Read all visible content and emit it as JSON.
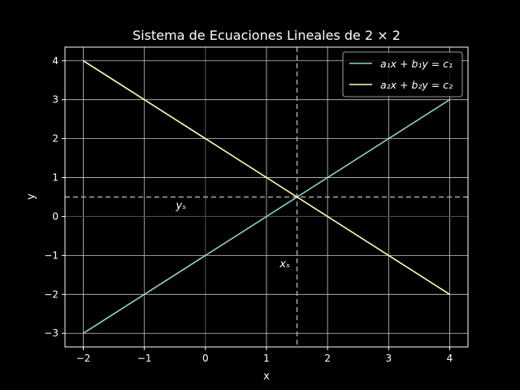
{
  "chart_data": {
    "type": "line",
    "title": "Sistema de Ecuaciones Lineales de 2 × 2",
    "xlabel": "x",
    "ylabel": "y",
    "xlim": [
      -2.3,
      4.3
    ],
    "ylim": [
      -3.35,
      4.35
    ],
    "xticks": [
      -2,
      -1,
      0,
      1,
      2,
      3,
      4
    ],
    "yticks": [
      -3,
      -2,
      -1,
      0,
      1,
      2,
      3,
      4
    ],
    "xtick_labels": [
      "−2",
      "−1",
      "0",
      "1",
      "2",
      "3",
      "4"
    ],
    "ytick_labels": [
      "−3",
      "−2",
      "−1",
      "0",
      "1",
      "2",
      "3",
      "4"
    ],
    "grid": true,
    "legend_position": "top-right",
    "series": [
      {
        "name": "a₁x + b₁y = c₁",
        "color": "#8dd3c7",
        "x": [
          -2,
          4
        ],
        "y": [
          -3,
          3
        ]
      },
      {
        "name": "a₂x + b₂y = c₂",
        "color": "#ffffb3",
        "x": [
          -2,
          4
        ],
        "y": [
          4,
          -2
        ]
      }
    ],
    "solution": {
      "x": 1.5,
      "y": 0.5
    },
    "annotations": [
      {
        "text": "xₛ",
        "x": 1.3,
        "y": -1.3
      },
      {
        "text": "yₛ",
        "x": -0.4,
        "y": 0.2
      }
    ]
  }
}
